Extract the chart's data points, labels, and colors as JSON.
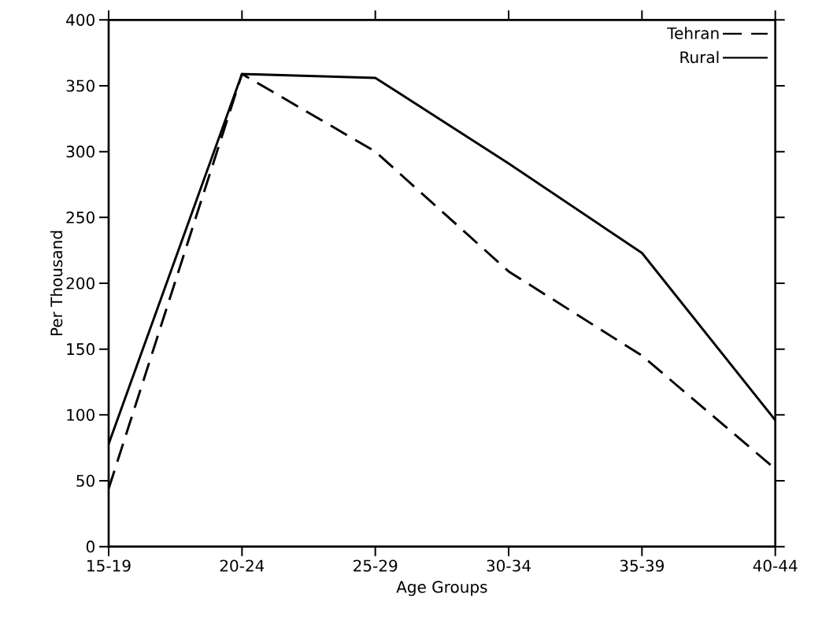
{
  "chart_data": {
    "type": "line",
    "xlabel": "Age Groups",
    "ylabel": "Per Thousand",
    "categories": [
      "15-19",
      "20-24",
      "25-29",
      "30-34",
      "35-39",
      "40-44"
    ],
    "series": [
      {
        "name": "Tehran",
        "color": "#000000",
        "line_style": "dashed",
        "values": [
          44,
          359,
          300,
          209,
          145,
          59
        ]
      },
      {
        "name": "Rural",
        "color": "#000000",
        "line_style": "solid",
        "values": [
          78,
          359,
          356,
          291,
          223,
          96
        ]
      }
    ],
    "ylim": [
      0,
      400
    ],
    "yticks": [
      0,
      50,
      100,
      150,
      200,
      250,
      300,
      350,
      400
    ],
    "legend": "top right"
  }
}
